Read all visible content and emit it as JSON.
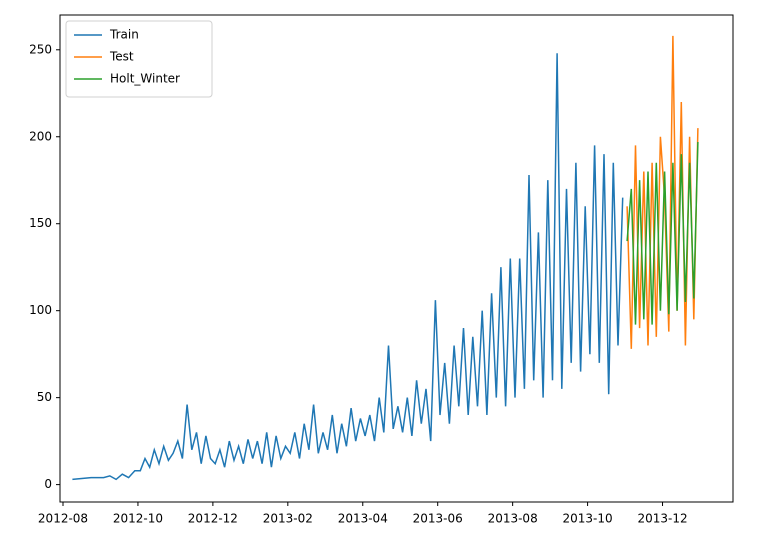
{
  "chart_data": {
    "type": "line",
    "xlim": [
      "2012-08",
      "2014-01"
    ],
    "xticks": [
      "2012-08",
      "2012-10",
      "2012-12",
      "2013-02",
      "2013-04",
      "2013-06",
      "2013-08",
      "2013-10",
      "2013-12"
    ],
    "ylim": [
      -10,
      270
    ],
    "yticks": [
      0,
      50,
      100,
      150,
      200,
      250
    ],
    "legend": "upper left",
    "grid": false,
    "series": [
      {
        "name": "Train",
        "color": "#1f77b4",
        "x": [
          "2012-08",
          "2012-08",
          "2012-09",
          "2012-09",
          "2012-09",
          "2012-09",
          "2012-09",
          "2012-09",
          "2012-10",
          "2012-10",
          "2012-10",
          "2012-10",
          "2012-10",
          "2012-10",
          "2012-10",
          "2012-10",
          "2012-11",
          "2012-11",
          "2012-11",
          "2012-11",
          "2012-11",
          "2012-11",
          "2012-11",
          "2012-11",
          "2012-12",
          "2012-12",
          "2012-12",
          "2012-12",
          "2012-12",
          "2012-12",
          "2012-12",
          "2012-12",
          "2013-01",
          "2013-01",
          "2013-01",
          "2013-01",
          "2013-01",
          "2013-01",
          "2013-01",
          "2013-01",
          "2013-02",
          "2013-02",
          "2013-02",
          "2013-02",
          "2013-02",
          "2013-02",
          "2013-02",
          "2013-02",
          "2013-03",
          "2013-03",
          "2013-03",
          "2013-03",
          "2013-03",
          "2013-03",
          "2013-03",
          "2013-03",
          "2013-04",
          "2013-04",
          "2013-04",
          "2013-04",
          "2013-04",
          "2013-04",
          "2013-04",
          "2013-04",
          "2013-05",
          "2013-05",
          "2013-05",
          "2013-05",
          "2013-05",
          "2013-05",
          "2013-05",
          "2013-05",
          "2013-06",
          "2013-06",
          "2013-06",
          "2013-06",
          "2013-06",
          "2013-06",
          "2013-06",
          "2013-06",
          "2013-07",
          "2013-07",
          "2013-07",
          "2013-07",
          "2013-07",
          "2013-07",
          "2013-07",
          "2013-07",
          "2013-08",
          "2013-08",
          "2013-08",
          "2013-08",
          "2013-08",
          "2013-08",
          "2013-08",
          "2013-08",
          "2013-09",
          "2013-09",
          "2013-09",
          "2013-09",
          "2013-09",
          "2013-09",
          "2013-09",
          "2013-09",
          "2013-10",
          "2013-10",
          "2013-10",
          "2013-10",
          "2013-10",
          "2013-10",
          "2013-10",
          "2013-10"
        ],
        "values": [
          3,
          4,
          4,
          5,
          3,
          6,
          4,
          8,
          8,
          15,
          10,
          20,
          12,
          22,
          14,
          18,
          25,
          15,
          46,
          20,
          30,
          12,
          28,
          15,
          12,
          20,
          10,
          25,
          14,
          22,
          12,
          26,
          15,
          25,
          12,
          30,
          10,
          28,
          15,
          22,
          18,
          30,
          15,
          35,
          20,
          46,
          18,
          30,
          20,
          40,
          18,
          35,
          22,
          44,
          25,
          38,
          28,
          40,
          25,
          50,
          30,
          80,
          32,
          45,
          30,
          50,
          28,
          60,
          35,
          55,
          25,
          106,
          40,
          70,
          35,
          80,
          45,
          90,
          40,
          85,
          45,
          100,
          40,
          110,
          50,
          125,
          45,
          130,
          50,
          130,
          55,
          178,
          60,
          145,
          50,
          175,
          60,
          248,
          55,
          170,
          70,
          185,
          65,
          160,
          75,
          195,
          70,
          190,
          52,
          185,
          80,
          165
        ]
      },
      {
        "name": "Test",
        "color": "#ff7f0e",
        "x": [
          "2013-11",
          "2013-11",
          "2013-11",
          "2013-11",
          "2013-11",
          "2013-11",
          "2013-11",
          "2013-11",
          "2013-11",
          "2013-12",
          "2013-12",
          "2013-12",
          "2013-12",
          "2013-12",
          "2013-12",
          "2013-12",
          "2013-12",
          "2013-12"
        ],
        "values": [
          160,
          78,
          195,
          90,
          180,
          80,
          185,
          85,
          200,
          165,
          88,
          258,
          100,
          220,
          80,
          200,
          95,
          205
        ]
      },
      {
        "name": "Holt_Winter",
        "color": "#2ca02c",
        "x": [
          "2013-11",
          "2013-11",
          "2013-11",
          "2013-11",
          "2013-11",
          "2013-11",
          "2013-11",
          "2013-11",
          "2013-11",
          "2013-12",
          "2013-12",
          "2013-12",
          "2013-12",
          "2013-12",
          "2013-12",
          "2013-12",
          "2013-12",
          "2013-12"
        ],
        "values": [
          140,
          170,
          92,
          175,
          95,
          180,
          92,
          185,
          100,
          180,
          98,
          185,
          100,
          190,
          105,
          185,
          107,
          197
        ]
      }
    ]
  }
}
